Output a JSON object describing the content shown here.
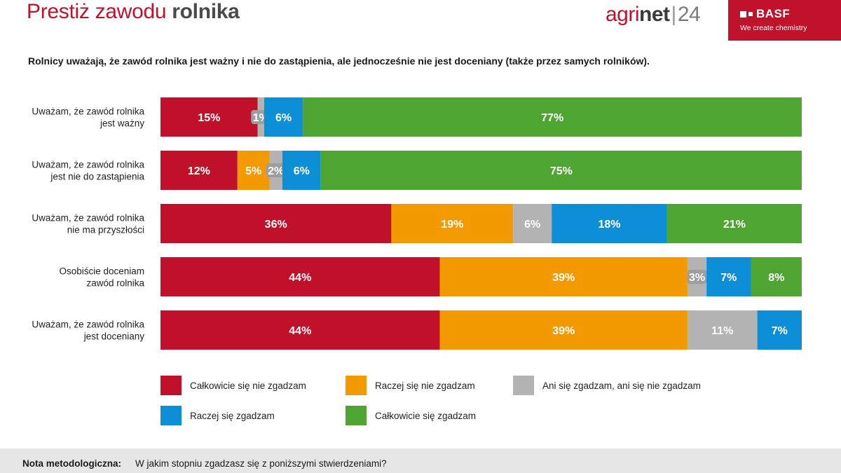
{
  "header": {
    "title_regular": "Prestiż zawodu",
    "title_bold": "rolnika",
    "agrinet": {
      "agri": "agri",
      "net": "net",
      "sep": "|",
      "year": "24"
    },
    "basf": {
      "brand": "BASF",
      "tagline": "We create chemistry"
    }
  },
  "colors": {
    "brand_red": "#c0122b",
    "categories": [
      "#c0102a",
      "#f39a00",
      "#b3b3b3",
      "#0d8fd8",
      "#4fa532"
    ]
  },
  "chart_data": {
    "type": "bar",
    "orientation": "horizontal",
    "stacked": "percent",
    "title": "Rolnicy uważają, że zawód rolnika jest ważny i nie do zastąpienia, ale jednocześnie nie jest doceniany (także przez samych rolników).",
    "categories": [
      [
        "Uważam, że zawód rolnika",
        "jest ważny"
      ],
      [
        "Uważam, że zawód rolnika",
        "jest nie do zastąpienia"
      ],
      [
        "Uważam, że zawód rolnika",
        "nie ma przyszłości"
      ],
      [
        "Osobiście doceniam",
        "zawód rolnika"
      ],
      [
        "Uważam, że zawód rolnika",
        "jest doceniany"
      ]
    ],
    "series": [
      {
        "name": "Całkowicie się nie zgadzam",
        "values": [
          15,
          12,
          36,
          44,
          44
        ],
        "labels": [
          "15%",
          "12%",
          "36%",
          "44%",
          "44%"
        ]
      },
      {
        "name": "Raczej się nie zgadzam",
        "values": [
          0,
          5,
          19,
          39,
          39
        ],
        "labels": [
          "",
          "5%",
          "19%",
          "39%",
          "39%"
        ]
      },
      {
        "name": "Ani się zgadzam, ani się nie zgadzam",
        "values": [
          1,
          2,
          6,
          3,
          11
        ],
        "labels": [
          "1%",
          "2%",
          "6%",
          "3%",
          "11%"
        ]
      },
      {
        "name": "Raczej się zgadzam",
        "values": [
          6,
          6,
          18,
          7,
          7
        ],
        "labels": [
          "6%",
          "6%",
          "18%",
          "7%",
          "7%"
        ]
      },
      {
        "name": "Całkowicie się zgadzam",
        "values": [
          77,
          75,
          21,
          8,
          0
        ],
        "labels": [
          "77%",
          "75%",
          "21%",
          "8%",
          ""
        ]
      }
    ],
    "legend_position": "bottom",
    "grid": false
  },
  "footer": {
    "label": "Nota metodologiczna:",
    "text": "W jakim stopniu zgadzasz się z poniższymi stwierdzeniami?"
  }
}
